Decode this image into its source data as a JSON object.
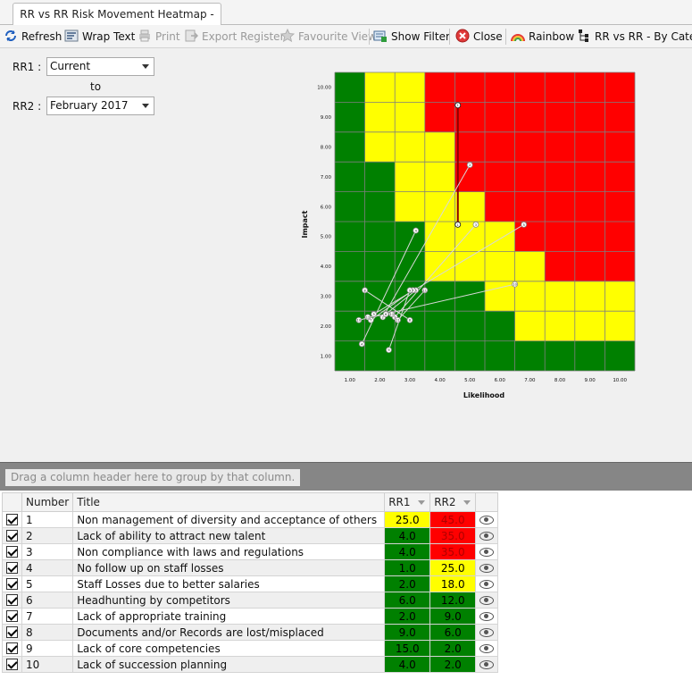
{
  "tab": {
    "title": "RR vs RR Risk Movement Heatmap - HR"
  },
  "toolbar": {
    "refresh": "Refresh",
    "wrap_text": "Wrap Text",
    "print": "Print",
    "export_register": "Export Register",
    "favourite_view": "Favourite View",
    "show_filter": "Show Filter",
    "close": "Close",
    "rainbow": "Rainbow",
    "rr_vs_rr": "RR vs RR - By Catego"
  },
  "selectors": {
    "rr1_label": "RR1 :",
    "rr1_value": "Current",
    "to_label": "to",
    "rr2_label": "RR2 :",
    "rr2_value": "February 2017"
  },
  "chart_data": {
    "type": "heatmap",
    "xlabel": "Likelihood",
    "ylabel": "Impact",
    "x_ticks": [
      "1.00",
      "2.00",
      "3.00",
      "4.00",
      "5.00",
      "6.00",
      "7.00",
      "8.00",
      "9.00",
      "10.00"
    ],
    "y_ticks": [
      "1.00",
      "2.00",
      "3.00",
      "4.00",
      "5.00",
      "6.00",
      "7.00",
      "8.00",
      "9.00",
      "10.00"
    ],
    "xlim": [
      0.5,
      10.5
    ],
    "ylim": [
      0.5,
      10.5
    ],
    "colors": {
      "G": "#008000",
      "Y": "#ffff00",
      "R": "#ff0000"
    },
    "cells": [
      "GYYRRRRRRR",
      "GYYRRRRRRR",
      "GYYYRRRRRR",
      "GGYYRRRRRR",
      "GGYYYRRRRR",
      "GGGYYYRRRR",
      "GGGYYYYRRR",
      "GGGGGYYYYY",
      "GGGGGGYYYY",
      "GGGGGGGGGG"
    ],
    "movements": [
      {
        "id": "1",
        "from": [
          4.6,
          5.4
        ],
        "to": [
          4.6,
          9.4
        ],
        "highlight": true
      },
      {
        "id": "2",
        "from": [
          2.1,
          2.3
        ],
        "to": [
          5.0,
          7.4
        ]
      },
      {
        "id": "3",
        "from": [
          2.5,
          2.3
        ],
        "to": [
          5.2,
          5.4
        ]
      },
      {
        "id": "4",
        "from": [
          1.4,
          1.4
        ],
        "to": [
          3.2,
          5.2
        ]
      },
      {
        "id": "5",
        "from": [
          1.8,
          2.4
        ],
        "to": [
          6.8,
          5.4
        ]
      },
      {
        "id": "6",
        "from": [
          2.2,
          2.4
        ],
        "to": [
          3.2,
          3.2
        ]
      },
      {
        "id": "7",
        "from": [
          1.7,
          2.2
        ],
        "to": [
          3.1,
          3.2
        ]
      },
      {
        "id": "8",
        "from": [
          1.5,
          3.2
        ],
        "to": [
          3.0,
          2.2
        ]
      },
      {
        "id": "9",
        "from": [
          2.3,
          1.2
        ],
        "to": [
          3.0,
          3.2
        ]
      },
      {
        "id": "10",
        "from": [
          1.3,
          2.2
        ],
        "to": [
          6.5,
          3.4
        ]
      },
      {
        "id": "11",
        "from": [
          2.6,
          2.2
        ],
        "to": [
          3.5,
          3.2
        ]
      },
      {
        "id": "12",
        "from": [
          1.6,
          2.3
        ],
        "to": [
          2.4,
          2.4
        ]
      }
    ]
  },
  "group_panel": {
    "hint": "Drag a column header here to group by that column."
  },
  "table": {
    "headers": {
      "number": "Number",
      "title": "Title",
      "rr1": "RR1",
      "rr2": "RR2"
    },
    "rows": [
      {
        "number": "1",
        "title": "Non management of diversity and acceptance of others",
        "rr1": "25.0",
        "rr1_color": "#ffff00",
        "rr2": "45.0",
        "rr2_color": "#ff0000"
      },
      {
        "number": "2",
        "title": "Lack of ability to attract new talent",
        "rr1": "4.0",
        "rr1_color": "#008000",
        "rr2": "35.0",
        "rr2_color": "#ff0000"
      },
      {
        "number": "3",
        "title": "Non compliance with laws and regulations",
        "rr1": "4.0",
        "rr1_color": "#008000",
        "rr2": "35.0",
        "rr2_color": "#ff0000"
      },
      {
        "number": "4",
        "title": "No follow up on staff losses",
        "rr1": "1.0",
        "rr1_color": "#008000",
        "rr2": "25.0",
        "rr2_color": "#ffff00"
      },
      {
        "number": "5",
        "title": "Staff Losses due to better salaries",
        "rr1": "2.0",
        "rr1_color": "#008000",
        "rr2": "18.0",
        "rr2_color": "#ffff00"
      },
      {
        "number": "6",
        "title": "Headhunting by competitors",
        "rr1": "6.0",
        "rr1_color": "#008000",
        "rr2": "12.0",
        "rr2_color": "#008000"
      },
      {
        "number": "7",
        "title": "Lack of appropriate training",
        "rr1": "2.0",
        "rr1_color": "#008000",
        "rr2": "9.0",
        "rr2_color": "#008000"
      },
      {
        "number": "8",
        "title": "Documents and/or Records are lost/misplaced",
        "rr1": "9.0",
        "rr1_color": "#008000",
        "rr2": "6.0",
        "rr2_color": "#008000"
      },
      {
        "number": "9",
        "title": "Lack of core competencies",
        "rr1": "15.0",
        "rr1_color": "#008000",
        "rr2": "2.0",
        "rr2_color": "#008000"
      },
      {
        "number": "10",
        "title": "Lack of succession planning",
        "rr1": "4.0",
        "rr1_color": "#008000",
        "rr2": "2.0",
        "rr2_color": "#008000"
      }
    ]
  }
}
